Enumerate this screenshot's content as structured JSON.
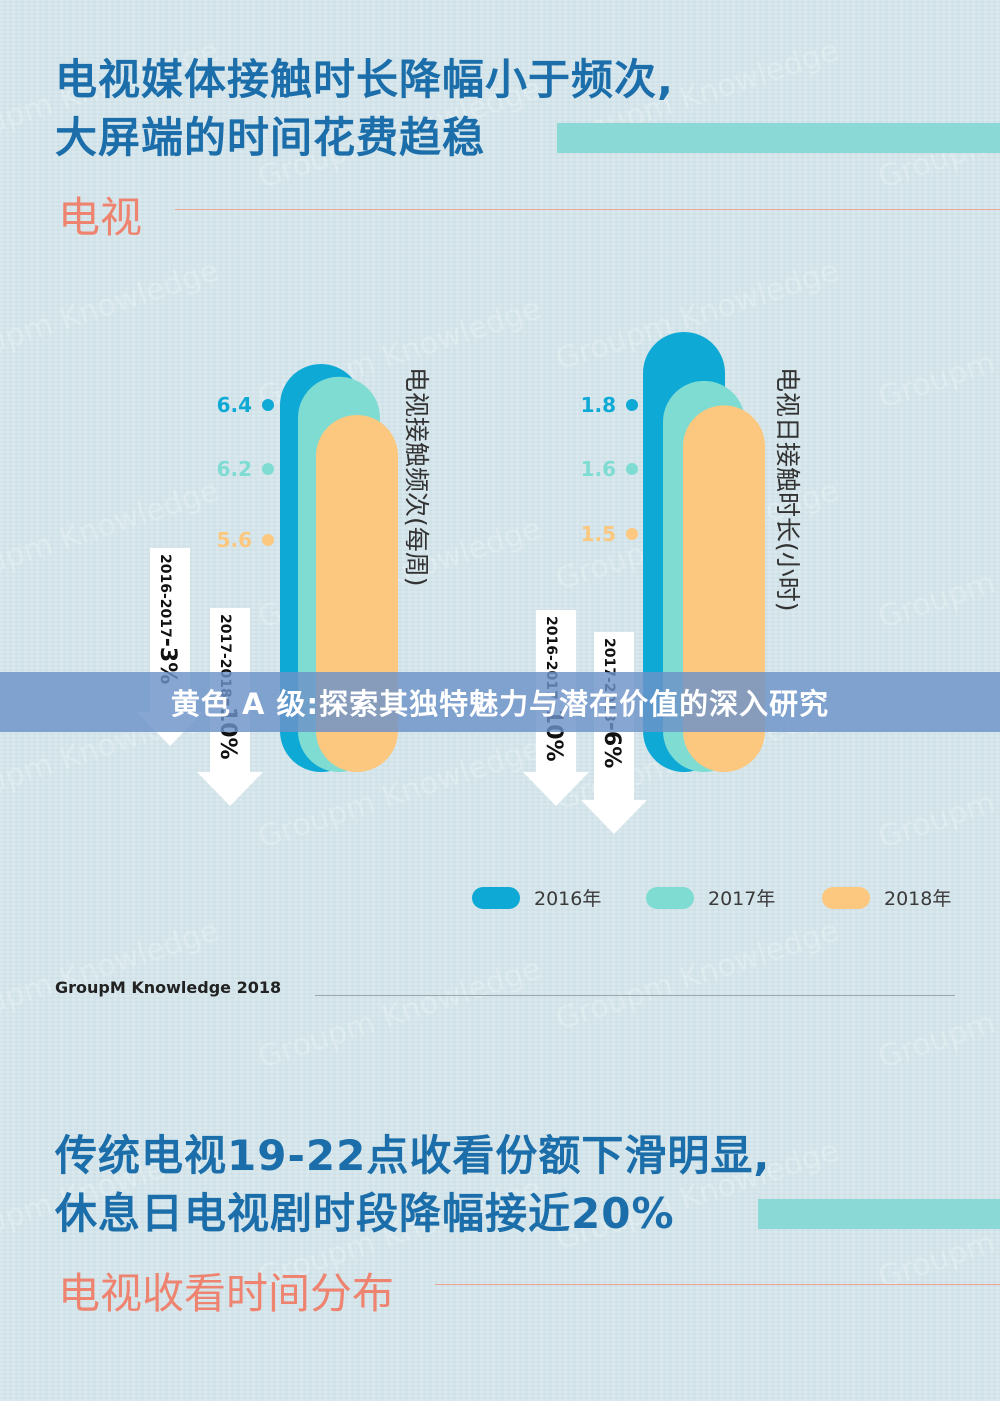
{
  "section1": {
    "headline_line1": "电视媒体接触时长降幅小于频次,",
    "headline_line2": "大屏端的时间花费趋稳",
    "label": "电视"
  },
  "chart_data": [
    {
      "type": "bar",
      "title": "电视接触频次(每周)",
      "categories": [
        "2016年",
        "2017年",
        "2018年"
      ],
      "values": [
        6.4,
        6.2,
        5.6
      ],
      "value_labels": [
        "6.4",
        "6.2",
        "5.6"
      ],
      "changes": [
        {
          "label": "2016-2017",
          "value": "-3%"
        },
        {
          "label": "2017-2018",
          "value": "-10%"
        }
      ]
    },
    {
      "type": "bar",
      "title": "电视日接触时长(小时)",
      "categories": [
        "2016年",
        "2017年",
        "2018年"
      ],
      "values": [
        1.8,
        1.6,
        1.5
      ],
      "value_labels": [
        "1.8",
        "1.6",
        "1.5"
      ],
      "changes": [
        {
          "label": "2016-2017",
          "value": "-10%"
        },
        {
          "label": "2017-2018",
          "value": "-6%"
        }
      ]
    }
  ],
  "legend": [
    {
      "label": "2016年",
      "color": "#0fa9d6"
    },
    {
      "label": "2017年",
      "color": "#7fdcd2"
    },
    {
      "label": "2018年",
      "color": "#fcc77e"
    }
  ],
  "source": "GroupM Knowledge 2018",
  "section2": {
    "headline_line1": "传统电视19-22点收看份额下滑明显,",
    "headline_line2": "休息日电视剧时段降幅接近20%",
    "label": "电视收看时间分布"
  },
  "watermark": "Groupm Knowledge",
  "banner": "黄色 A 级:探索其独特魅力与潜在价值的深入研究"
}
